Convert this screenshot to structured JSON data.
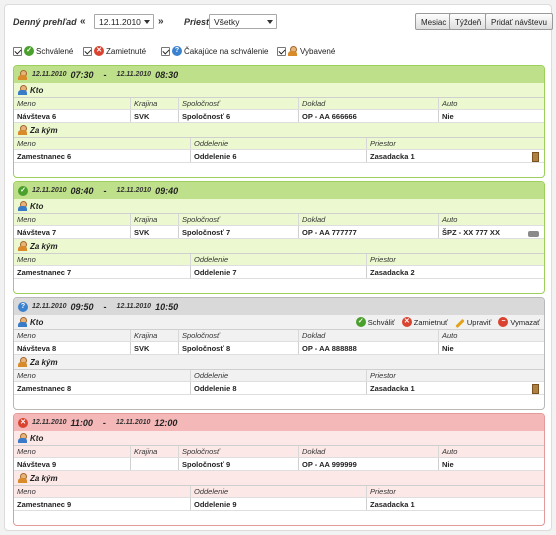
{
  "toolbar": {
    "title": "Denný prehľad",
    "prev": "«",
    "next": "»",
    "date_value": "12.11.2010",
    "room_label": "Priestor",
    "room_value": "Všetky",
    "buttons": {
      "month": "Mesiac",
      "week": "Týždeň",
      "add": "Pridať návštevu"
    }
  },
  "filters": [
    {
      "label": "Schválené",
      "icon": "check-icon",
      "color": "#4aa02c"
    },
    {
      "label": "Zamietnuté",
      "icon": "reject-icon",
      "color": "#d9432f"
    },
    {
      "label": "Čakajúce na schválenie",
      "icon": "question-icon",
      "color": "#3a82d0"
    },
    {
      "label": "Vybavené",
      "icon": "person-door-icon",
      "color": "#b08040"
    }
  ],
  "labels": {
    "kto": "Kto",
    "za_kym": "Za kým",
    "visitor_cols": [
      "Meno",
      "Krajina",
      "Spoločnosť",
      "Doklad",
      "Auto"
    ],
    "host_cols": [
      "Meno",
      "Oddelenie",
      "Priestor"
    ],
    "actions": {
      "approve": "Schváliť",
      "reject": "Zamietnuť",
      "edit": "Upraviť",
      "delete": "Vymazať"
    }
  },
  "visits": [
    {
      "status": "vybavene",
      "date_from": "12.11.2010",
      "time_from": "07:30",
      "date_to": "12.11.2010",
      "time_to": "08:30",
      "visitor": {
        "name": "Návšteva 6",
        "country": "SVK",
        "company": "Spoločnosť 6",
        "document": "OP - AA 666666",
        "car": "Nie"
      },
      "host": {
        "name": "Zamestnanec 6",
        "department": "Oddelenie 6",
        "room": "Zasadacka 1"
      }
    },
    {
      "status": "schvalene",
      "date_from": "12.11.2010",
      "time_from": "08:40",
      "date_to": "12.11.2010",
      "time_to": "09:40",
      "visitor": {
        "name": "Návšteva 7",
        "country": "SVK",
        "company": "Spoločnosť 7",
        "document": "OP - AA 777777",
        "car": "ŠPZ - XX 777 XX"
      },
      "host": {
        "name": "Zamestnanec 7",
        "department": "Oddelenie 7",
        "room": "Zasadacka 2"
      }
    },
    {
      "status": "cakajuce",
      "date_from": "12.11.2010",
      "time_from": "09:50",
      "date_to": "12.11.2010",
      "time_to": "10:50",
      "visitor": {
        "name": "Návšteva 8",
        "country": "SVK",
        "company": "Spoločnosť 8",
        "document": "OP - AA 888888",
        "car": "Nie"
      },
      "host": {
        "name": "Zamestnanec 8",
        "department": "Oddelenie 8",
        "room": "Zasadacka 1"
      }
    },
    {
      "status": "zamietnute",
      "date_from": "12.11.2010",
      "time_from": "11:00",
      "date_to": "12.11.2010",
      "time_to": "12:00",
      "visitor": {
        "name": "Návšteva 9",
        "country": "",
        "company": "Spoločnosť 9",
        "document": "OP - AA 999999",
        "car": "Nie"
      },
      "host": {
        "name": "Zamestnanec 9",
        "department": "Oddelenie 9",
        "room": "Zasadacka 1"
      }
    }
  ]
}
